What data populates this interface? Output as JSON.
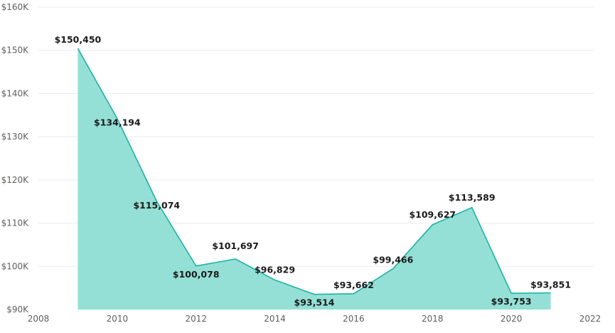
{
  "chart_data": {
    "type": "area",
    "title": "",
    "xlabel": "",
    "ylabel": "",
    "x": [
      2009,
      2010,
      2011,
      2012,
      2013,
      2014,
      2015,
      2016,
      2017,
      2018,
      2019,
      2020,
      2021
    ],
    "series": [
      {
        "values": [
          150450,
          134194,
          115074,
          100078,
          101697,
          96829,
          93514,
          93662,
          99466,
          109627,
          113589,
          93753,
          93851
        ],
        "labels": [
          "$150,450",
          "$134,194",
          "$115,074",
          "$100,078",
          "$101,697",
          "$96,829",
          "$93,514",
          "$93,662",
          "$99,466",
          "$109,627",
          "$113,589",
          "$93,753",
          "$93,851"
        ],
        "line_color": "#1bb3a3",
        "fill_color": "#95e0d6"
      }
    ],
    "xlim": [
      2008,
      2022
    ],
    "ylim": [
      90000,
      160000
    ],
    "x_ticks": [
      2008,
      2010,
      2012,
      2014,
      2016,
      2018,
      2020,
      2022
    ],
    "x_tick_labels": [
      "2008",
      "2010",
      "2012",
      "2014",
      "2016",
      "2018",
      "2020",
      "2022"
    ],
    "y_ticks": [
      90000,
      100000,
      110000,
      120000,
      130000,
      140000,
      150000,
      160000
    ],
    "y_tick_labels": [
      "$90K",
      "$100K",
      "$110K",
      "$120K",
      "$130K",
      "$140K",
      "$150K",
      "$160K"
    ],
    "grid": true,
    "legend": "none"
  }
}
